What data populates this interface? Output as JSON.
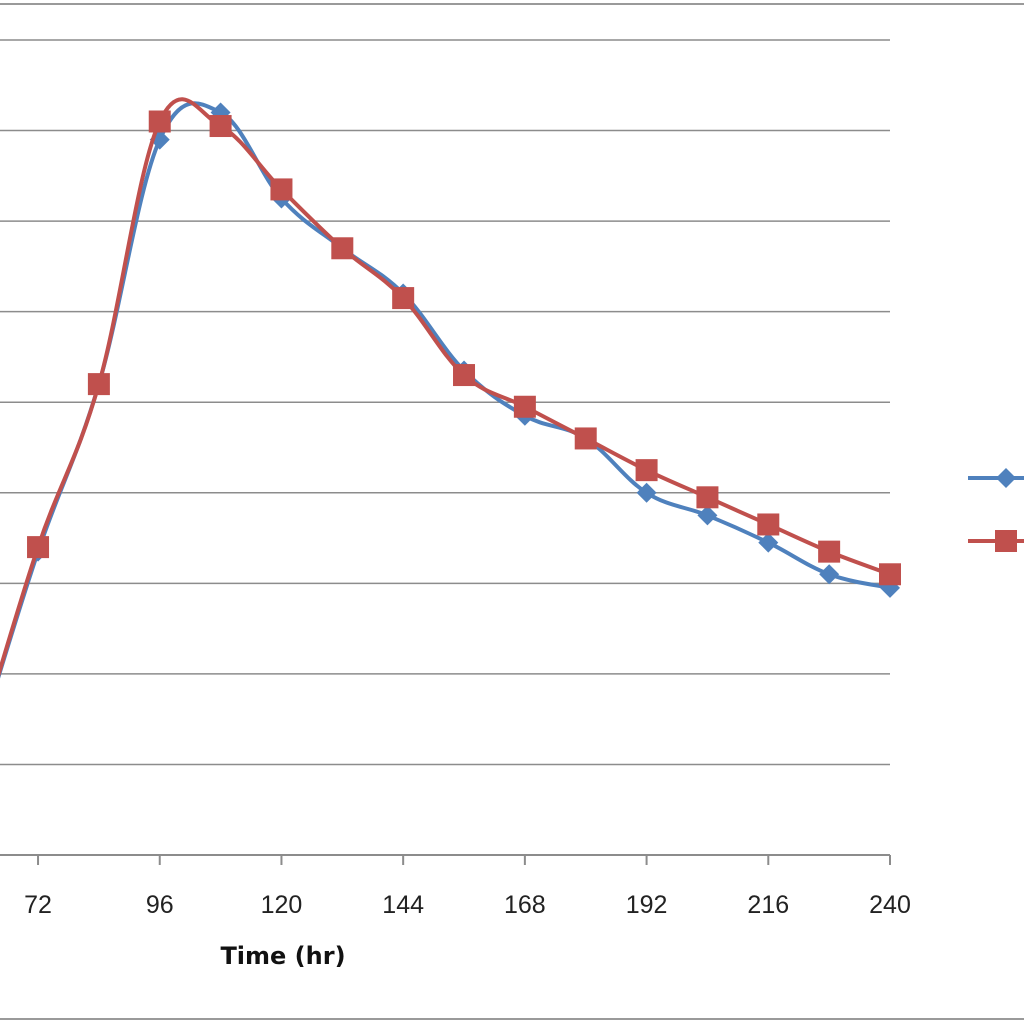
{
  "chart_data": {
    "type": "line",
    "xlabel": "Time (hr)",
    "ylabel": "",
    "x_ticks": [
      72,
      96,
      120,
      144,
      168,
      192,
      216,
      240
    ],
    "xlim": [
      64.5,
      240
    ],
    "ylim": [
      0,
      9
    ],
    "grid": true,
    "legend_position": "right",
    "series": [
      {
        "color": "#4f81bd",
        "marker": "diamond",
        "x": [
          60,
          72,
          84,
          96,
          108,
          120,
          132,
          144,
          156,
          168,
          180,
          192,
          204,
          216,
          228,
          240
        ],
        "y": [
          1.2,
          3.35,
          5.2,
          7.9,
          8.2,
          7.25,
          6.7,
          6.2,
          5.35,
          4.85,
          4.6,
          4.0,
          3.75,
          3.45,
          3.1,
          2.95
        ]
      },
      {
        "color": "#c0504d",
        "marker": "square",
        "x": [
          60,
          72,
          84,
          96,
          108,
          120,
          132,
          144,
          156,
          168,
          180,
          192,
          204,
          216,
          228,
          240
        ],
        "y": [
          1.2,
          3.4,
          5.2,
          8.1,
          8.05,
          7.35,
          6.7,
          6.15,
          5.3,
          4.95,
          4.6,
          4.25,
          3.95,
          3.65,
          3.35,
          3.1
        ]
      }
    ]
  }
}
